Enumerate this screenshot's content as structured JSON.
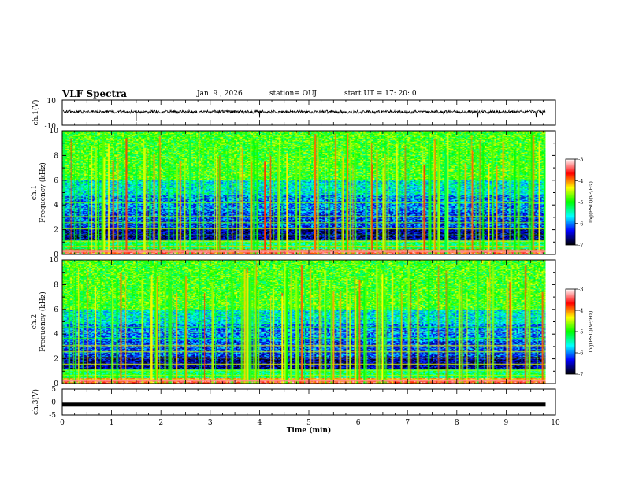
{
  "header": {
    "title": "VLF Spectra",
    "date": "Jan. 9 , 2026",
    "station": "station= OUJ",
    "start_ut": "start UT =   17: 20: 0"
  },
  "chart_data": [
    {
      "type": "line",
      "panel": "ch.1 waveform",
      "ylabel": "ch.1(V)",
      "ylim": [
        -10,
        10
      ],
      "yticks": [
        "10",
        "-10"
      ],
      "baseline": 0,
      "trace_color": "#000000"
    },
    {
      "type": "heatmap",
      "panel": "ch.1 spectrogram",
      "ylabel": "ch.1\nFrequency (kHz)",
      "ylim": [
        0,
        10
      ],
      "yticks": [
        "0",
        "2",
        "4",
        "6",
        "8",
        "10"
      ],
      "xlim": [
        0,
        10
      ],
      "colorbar": {
        "label": "log(PSD)(V²/Hz)",
        "range": [
          -7,
          -3
        ],
        "ticks": [
          "-3",
          "-4",
          "-5",
          "-6",
          "-7"
        ]
      }
    },
    {
      "type": "heatmap",
      "panel": "ch.2 spectrogram",
      "ylabel": "ch.2\nFrequency (kHz)",
      "ylim": [
        0,
        10
      ],
      "yticks": [
        "0",
        "2",
        "4",
        "6",
        "8",
        "10"
      ],
      "xlim": [
        0,
        10
      ],
      "colorbar": {
        "label": "log(PSD)(V²/Hz)",
        "range": [
          -7,
          -3
        ],
        "ticks": [
          "-3",
          "-4",
          "-5",
          "-6",
          "-7"
        ]
      }
    },
    {
      "type": "line",
      "panel": "ch.3 waveform",
      "ylabel": "ch.3(V)",
      "ylim": [
        -5,
        5
      ],
      "yticks": [
        "5",
        "0",
        "-5"
      ],
      "level": -1,
      "trace_color": "#000000"
    }
  ],
  "xaxis": {
    "label": "Time (min)",
    "range": [
      0,
      10
    ],
    "ticks": [
      "0",
      "1",
      "2",
      "3",
      "4",
      "5",
      "6",
      "7",
      "8",
      "9",
      "10"
    ],
    "data_end": 9.8
  },
  "colors": {
    "colormap": [
      "#ffffff",
      "#ff0000",
      "#ffff00",
      "#00ff00",
      "#00ffff",
      "#0000ff",
      "#000000"
    ]
  }
}
